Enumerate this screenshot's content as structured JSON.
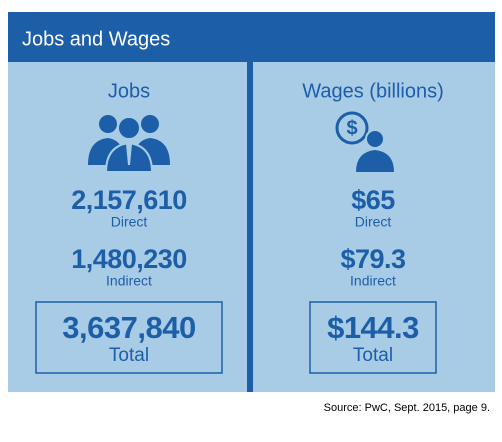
{
  "header": {
    "title": "Jobs and Wages"
  },
  "panels": [
    {
      "heading": "Jobs",
      "items": [
        {
          "value": "2,157,610",
          "label": "Direct"
        },
        {
          "value": "1,480,230",
          "label": "Indirect"
        }
      ],
      "total": {
        "value": "3,637,840",
        "label": "Total"
      }
    },
    {
      "heading": "Wages (billions)",
      "items": [
        {
          "value": "$65",
          "label": "Direct"
        },
        {
          "value": "$79.3",
          "label": "Indirect"
        }
      ],
      "total": {
        "value": "$144.3",
        "label": "Total"
      }
    }
  ],
  "source": "Source:  PwC, Sept. 2015, page 9."
}
